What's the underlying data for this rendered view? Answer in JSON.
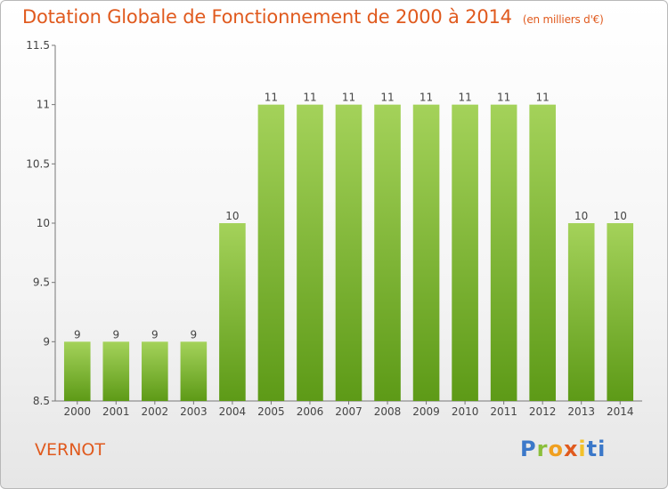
{
  "title": "Dotation Globale de Fonctionnement de 2000 à 2014",
  "unit": "(en milliers d'€)",
  "place": "VERNOT",
  "logo": [
    "P",
    "r",
    "o",
    "x",
    "i",
    "ti"
  ],
  "colors": {
    "bar_top": "#a4d25a",
    "bar_bottom": "#5d9a17",
    "title": "#e05a1e"
  },
  "chart_data": {
    "type": "bar",
    "title": "Dotation Globale de Fonctionnement de 2000 à 2014",
    "categories": [
      "2000",
      "2001",
      "2002",
      "2003",
      "2004",
      "2005",
      "2006",
      "2007",
      "2008",
      "2009",
      "2010",
      "2011",
      "2012",
      "2013",
      "2014"
    ],
    "values": [
      9,
      9,
      9,
      9,
      10,
      11,
      11,
      11,
      11,
      11,
      11,
      11,
      11,
      10,
      10
    ],
    "data_labels": [
      "9",
      "9",
      "9",
      "9",
      "10",
      "11",
      "11",
      "11",
      "11",
      "11",
      "11",
      "11",
      "11",
      "10",
      "10"
    ],
    "ylim": [
      8.5,
      11.5
    ],
    "yticks": [
      "8.5",
      "9",
      "9.5",
      "10",
      "10.5",
      "11",
      "11.5"
    ],
    "xlabel": "",
    "ylabel": "",
    "grid": false,
    "legend": "none"
  }
}
